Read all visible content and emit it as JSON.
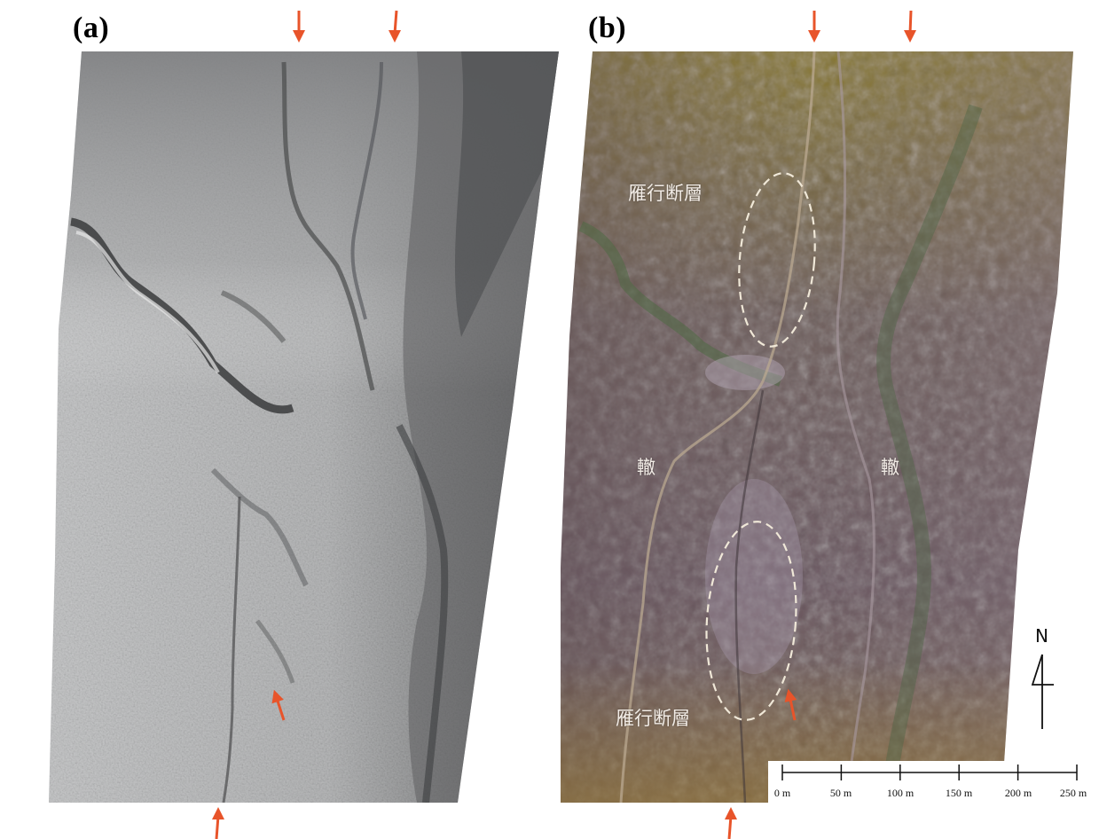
{
  "panels": [
    {
      "label": "(a)"
    },
    {
      "label": "(b)"
    }
  ],
  "annotations": {
    "fault_top": "雁行断層",
    "fault_bottom": "雁行断層",
    "ridge_left": "轍",
    "ridge_right": "轍"
  },
  "north_arrow": {
    "letter": "N",
    "icon": "north-arrow-icon"
  },
  "scale_bar": {
    "ticks": [
      "0 m",
      "50 m",
      "100 m",
      "150 m",
      "200 m",
      "250 m"
    ]
  },
  "colors": {
    "marker_arrow": "#e8542a",
    "dashed_ellipse": "#f0e8d8",
    "hillshade_base": "#bfc0c0",
    "aerial_base": "#6e5a60"
  }
}
